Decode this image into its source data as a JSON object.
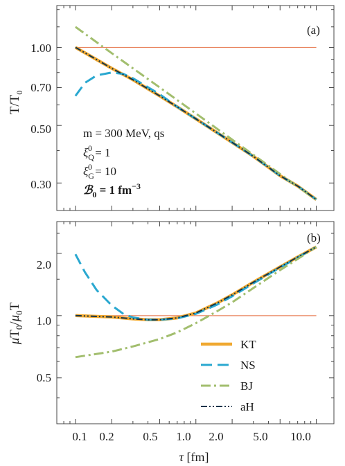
{
  "chart_data": [
    {
      "type": "line",
      "panel_label": "(a)",
      "ylabel_main": "T/T",
      "ylabel_sub": "0",
      "y_scale": "log",
      "x_scale": "log",
      "xlim": [
        0.07,
        14
      ],
      "ylim": [
        0.235,
        1.45
      ],
      "yticks": [
        1.0,
        0.7,
        0.5,
        0.3
      ],
      "ytick_labels": [
        "1.00",
        "0.70",
        "0.50",
        "0.30"
      ],
      "annotations": {
        "line1": "m = 300 MeV, qs",
        "line2_main": "ξ",
        "line2_sub": "Q",
        "line2_sup": "0",
        "line2_rest": " = 1",
        "line3_main": "ξ",
        "line3_sub": "G",
        "line3_sup": "0",
        "line3_rest": " = 10",
        "line4_main": "ℬ",
        "line4_sub": "0",
        "line4_rest": " = 1 fm",
        "line4_sup": "−3"
      },
      "reference_line": {
        "x": [
          0.1,
          10.0
        ],
        "y": [
          1.0,
          1.0
        ],
        "color": "#e8825c"
      },
      "series": [
        {
          "name": "KT",
          "x": [
            0.1,
            0.2,
            0.3,
            0.5,
            0.7,
            1.0,
            2.0,
            3.0,
            5.0,
            7.0,
            10.0
          ],
          "y": [
            1.0,
            0.83,
            0.75,
            0.65,
            0.59,
            0.53,
            0.43,
            0.38,
            0.32,
            0.292,
            0.259
          ]
        },
        {
          "name": "NS",
          "x": [
            0.1,
            0.12,
            0.15,
            0.2,
            0.25,
            0.3,
            0.5,
            0.7,
            1.0,
            2.0,
            3.0,
            5.0,
            7.0,
            10.0
          ],
          "y": [
            0.65,
            0.73,
            0.78,
            0.8,
            0.79,
            0.76,
            0.66,
            0.59,
            0.53,
            0.43,
            0.38,
            0.32,
            0.292,
            0.259
          ]
        },
        {
          "name": "BJ",
          "x": [
            0.1,
            0.2,
            0.5,
            1.0,
            2.0,
            5.0,
            10.0
          ],
          "y": [
            1.2,
            0.95,
            0.701,
            0.556,
            0.441,
            0.325,
            0.258
          ]
        },
        {
          "name": "aH",
          "x": [
            0.1,
            0.2,
            0.3,
            0.5,
            0.7,
            1.0,
            2.0,
            3.0,
            5.0,
            7.0,
            10.0
          ],
          "y": [
            1.0,
            0.83,
            0.75,
            0.65,
            0.59,
            0.53,
            0.43,
            0.38,
            0.32,
            0.292,
            0.259
          ]
        }
      ]
    },
    {
      "type": "line",
      "panel_label": "(b)",
      "ylabel_mu1": "μ",
      "ylabel_T1": "T",
      "ylabel_sub1": "0",
      "ylabel_slash": "/",
      "ylabel_mu2": "μ",
      "ylabel_sub2": "0",
      "ylabel_T2": "T",
      "xlabel_main": "τ",
      "xlabel_rest": " [fm]",
      "y_scale": "log",
      "x_scale": "log",
      "xlim": [
        0.07,
        14
      ],
      "ylim": [
        0.3,
        2.85
      ],
      "xticks": [
        0.1,
        0.2,
        0.5,
        1.0,
        2.0,
        5.0,
        10.0
      ],
      "xtick_labels": [
        "0.1",
        "0.2",
        "0.5",
        "1.0",
        "2.0",
        "5.0",
        "10.0"
      ],
      "yticks": [
        2.0,
        1.0,
        0.5
      ],
      "ytick_labels": [
        "2.0",
        "1.0",
        "0.5"
      ],
      "legend_position": "bottom-right",
      "reference_line": {
        "x": [
          0.1,
          10.0
        ],
        "y": [
          1.0,
          1.0
        ],
        "color": "#e8825c"
      },
      "series": [
        {
          "name": "KT",
          "x": [
            0.1,
            0.2,
            0.3,
            0.4,
            0.5,
            0.7,
            1.0,
            1.5,
            2.0,
            3.0,
            5.0,
            7.0,
            10.0
          ],
          "y": [
            1.0,
            0.985,
            0.965,
            0.955,
            0.955,
            0.975,
            1.03,
            1.15,
            1.26,
            1.45,
            1.72,
            1.92,
            2.15
          ]
        },
        {
          "name": "NS",
          "x": [
            0.1,
            0.12,
            0.15,
            0.2,
            0.25,
            0.3,
            0.4,
            0.5,
            0.7,
            1.0,
            1.5,
            2.0,
            3.0,
            5.0,
            7.0,
            10.0
          ],
          "y": [
            1.98,
            1.62,
            1.33,
            1.12,
            1.02,
            0.98,
            0.955,
            0.955,
            0.97,
            1.02,
            1.13,
            1.24,
            1.43,
            1.71,
            1.91,
            2.15
          ]
        },
        {
          "name": "BJ",
          "x": [
            0.1,
            0.2,
            0.3,
            0.5,
            0.7,
            1.0,
            1.5,
            2.0,
            3.0,
            5.0,
            7.0,
            10.0
          ],
          "y": [
            0.63,
            0.67,
            0.71,
            0.77,
            0.83,
            0.92,
            1.05,
            1.16,
            1.36,
            1.66,
            1.88,
            2.15
          ]
        },
        {
          "name": "aH",
          "x": [
            0.1,
            0.2,
            0.3,
            0.4,
            0.5,
            0.7,
            1.0,
            1.5,
            2.0,
            3.0,
            5.0,
            7.0,
            10.0
          ],
          "y": [
            1.0,
            0.985,
            0.965,
            0.955,
            0.955,
            0.975,
            1.03,
            1.15,
            1.26,
            1.45,
            1.72,
            1.92,
            2.15
          ]
        }
      ]
    }
  ],
  "series_styles": {
    "KT": {
      "color": "#f0a830",
      "dash": ""
    },
    "NS": {
      "color": "#2aa8d0",
      "dash": "16,8"
    },
    "BJ": {
      "color": "#a2be6e",
      "dash": "14,5,3,5"
    },
    "aH": {
      "color": "#12344a",
      "dash": "9,3,2,3,2,3"
    }
  }
}
